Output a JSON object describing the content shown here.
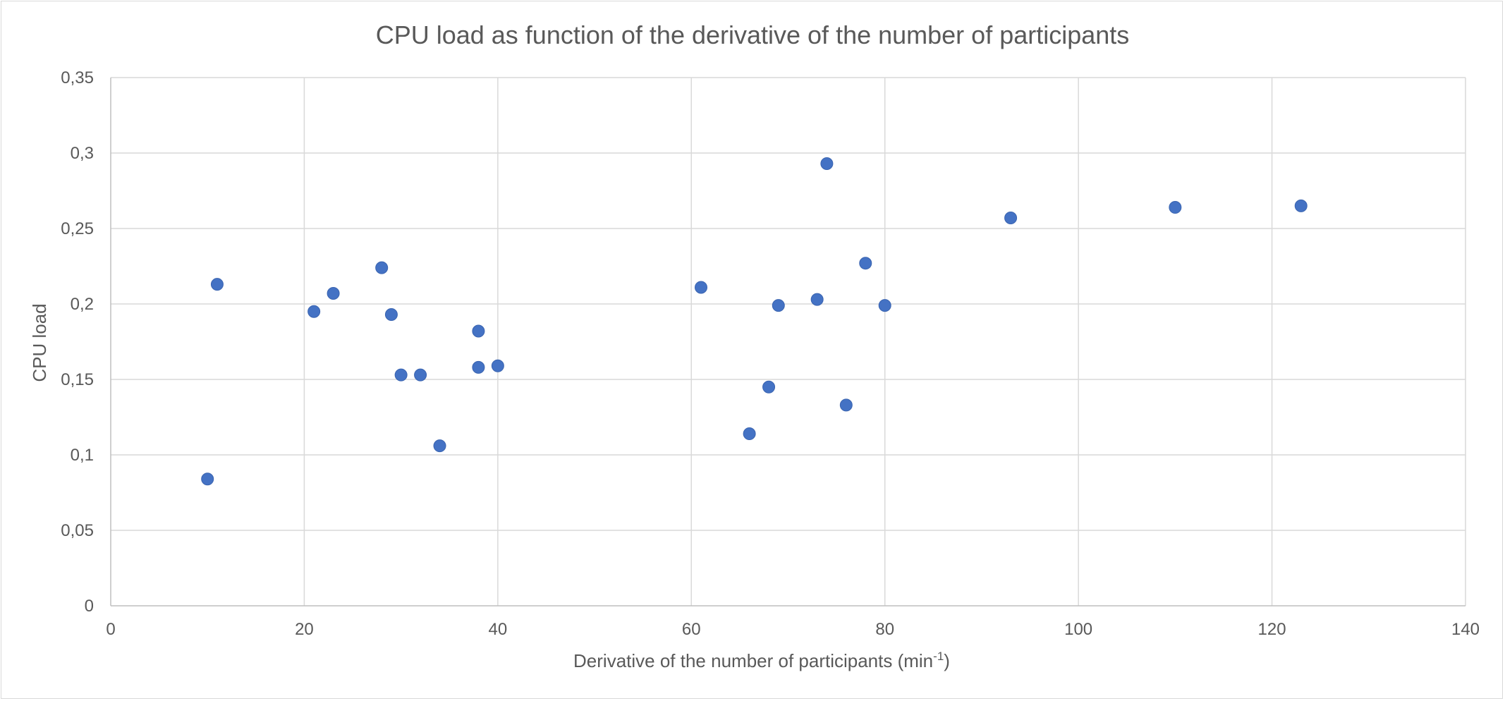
{
  "chart_data": {
    "type": "scatter",
    "title": "CPU load as function of the derivative of the number of participants",
    "xlabel": "Derivative of the number of participants (min",
    "xlabel_sup": "-1",
    "xlabel_suffix": ")",
    "ylabel": "CPU load",
    "xlim": [
      0,
      140
    ],
    "ylim": [
      0,
      0.35
    ],
    "x_ticks": [
      0,
      20,
      40,
      60,
      80,
      100,
      120,
      140
    ],
    "x_tick_labels": [
      "0",
      "20",
      "40",
      "60",
      "80",
      "100",
      "120",
      "140"
    ],
    "y_ticks": [
      0,
      0.05,
      0.1,
      0.15,
      0.2,
      0.25,
      0.3,
      0.35
    ],
    "y_tick_labels": [
      "0",
      "0,05",
      "0,1",
      "0,15",
      "0,2",
      "0,25",
      "0,3",
      "0,35"
    ],
    "grid": true,
    "legend": "none",
    "marker_color": "#4472c4",
    "gridline_color": "#d9d9d9",
    "axis_line_color": "#bfbfbf",
    "points": [
      {
        "x": 10,
        "y": 0.084
      },
      {
        "x": 11,
        "y": 0.213
      },
      {
        "x": 21,
        "y": 0.195
      },
      {
        "x": 23,
        "y": 0.207
      },
      {
        "x": 28,
        "y": 0.224
      },
      {
        "x": 29,
        "y": 0.193
      },
      {
        "x": 30,
        "y": 0.153
      },
      {
        "x": 32,
        "y": 0.153
      },
      {
        "x": 34,
        "y": 0.106
      },
      {
        "x": 38,
        "y": 0.182
      },
      {
        "x": 38,
        "y": 0.158
      },
      {
        "x": 40,
        "y": 0.159
      },
      {
        "x": 61,
        "y": 0.211
      },
      {
        "x": 66,
        "y": 0.114
      },
      {
        "x": 68,
        "y": 0.145
      },
      {
        "x": 69,
        "y": 0.199
      },
      {
        "x": 73,
        "y": 0.203
      },
      {
        "x": 74,
        "y": 0.293
      },
      {
        "x": 76,
        "y": 0.133
      },
      {
        "x": 78,
        "y": 0.227
      },
      {
        "x": 80,
        "y": 0.199
      },
      {
        "x": 93,
        "y": 0.257
      },
      {
        "x": 110,
        "y": 0.264
      },
      {
        "x": 123,
        "y": 0.265
      }
    ]
  }
}
